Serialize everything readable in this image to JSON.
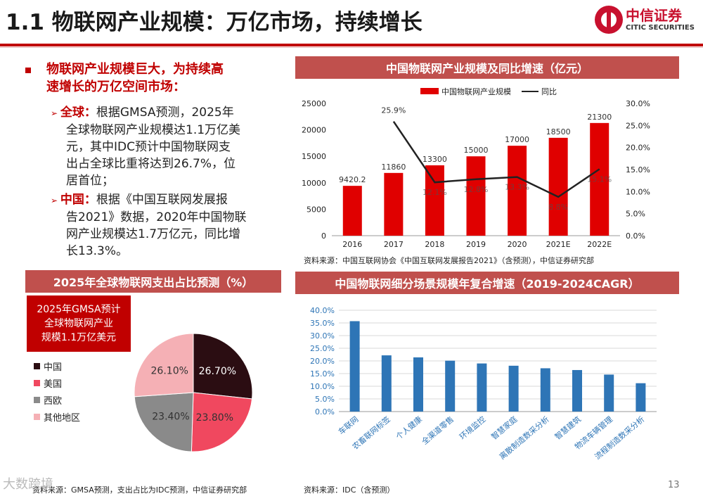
{
  "title": "1.1 物联网产业规模：万亿市场，持续增长",
  "logo": {
    "cn": "中信证券",
    "en": "CITIC SECURITIES"
  },
  "left": {
    "heading": "物联网产业规模巨大，为持续高速增长的万亿空间市场：",
    "heading_l1": "物联网产业规模巨大，为持续高",
    "heading_l2": "速增长的万亿空间市场：",
    "items": [
      {
        "label": "全球：",
        "lines": [
          "根据GMSA预测，2025年",
          "全球物联网产业规模达1.1万亿美",
          "元，其中IDC预计中国物联网支",
          "出占全球比重将达到26.7%，位",
          "居首位；"
        ]
      },
      {
        "label": "中国：",
        "lines": [
          "根据《中国互联网发展报",
          "告2021》数据，2020年中国物联",
          "网产业规模达1.7万亿元，同比增",
          "长13.3%。"
        ]
      }
    ]
  },
  "pie": {
    "header": "2025年全球物联网支出占比预测（%）",
    "note_lines": [
      "2025年GMSA预计",
      "全球物联网产业",
      "规模1.1万亿美元"
    ],
    "source": "资料来源：GMSA预测，支出占比为IDC预测，中信证券研究部"
  },
  "combo": {
    "header": "中国物联网产业规模及同比增速（亿元）",
    "source": "资料来源：中国互联网协会《中国互联网发展报告2021》（含预测），中信证券研究部"
  },
  "hbar": {
    "header": "中国物联网细分场景规模年复合增速（2019-2024CAGR）",
    "source": "资料来源：IDC（含预测）"
  },
  "watermark": "大数跨境",
  "page_number": "13",
  "colors": {
    "accent": "#c00000",
    "header_bar": "#c0504d",
    "bar_blue": "#2e75b6"
  },
  "chart_data": [
    {
      "type": "bar+line",
      "title": "中国物联网产业规模及同比增速（亿元）",
      "categories": [
        "2016",
        "2017",
        "2018",
        "2019",
        "2020",
        "2021E",
        "2022E"
      ],
      "series": [
        {
          "name": "中国物联网产业规模",
          "type": "bar",
          "axis": "left",
          "color": "#e00000",
          "values": [
            9420.2,
            11860,
            13300,
            15000,
            17000,
            18500,
            21300
          ],
          "labels": [
            "9420.2",
            "11860",
            "13300",
            "15000",
            "17000",
            "18500",
            "21300"
          ]
        },
        {
          "name": "同比",
          "type": "line",
          "axis": "right",
          "color": "#222222",
          "values": [
            null,
            25.9,
            12.1,
            12.8,
            13.3,
            8.8,
            15.1
          ],
          "labels": [
            "",
            "25.9%",
            "12.1%",
            "12.8%",
            "13.3%",
            "8.8%",
            "15.1%"
          ]
        }
      ],
      "yticks_left": [
        "0",
        "5000",
        "10000",
        "15000",
        "20000",
        "25000"
      ],
      "ylim_left": [
        0,
        25000
      ],
      "yticks_right": [
        "0.0%",
        "5.0%",
        "10.0%",
        "15.0%",
        "20.0%",
        "25.0%",
        "30.0%"
      ],
      "ylim_right": [
        0,
        30
      ],
      "legend": "top"
    },
    {
      "type": "pie",
      "title": "2025年全球物联网支出占比预测（%）",
      "slices": [
        {
          "name": "中国",
          "value": 26.7,
          "label": "26.70%",
          "color": "#2b0d12"
        },
        {
          "name": "美国",
          "value": 23.8,
          "label": "23.80%",
          "color": "#f0485f"
        },
        {
          "name": "西欧",
          "value": 23.4,
          "label": "23.40%",
          "color": "#8a8a8a"
        },
        {
          "name": "其他地区",
          "value": 26.1,
          "label": "26.10%",
          "color": "#f5b0b5"
        }
      ],
      "legend": "left"
    },
    {
      "type": "bar",
      "title": "中国物联网细分场景规模年复合增速（2019-2024CAGR）",
      "categories": [
        "车联网",
        "农畜联网标签",
        "个人健康",
        "全渠道零售",
        "环境监控",
        "智慧家庭",
        "离散制造数采分析",
        "智慧建筑",
        "物流车辆管理",
        "流程制造数采分析"
      ],
      "values": [
        35.7,
        22.2,
        21.4,
        20.1,
        19.0,
        18.1,
        17.1,
        16.4,
        14.6,
        11.2
      ],
      "yticks": [
        "0.0%",
        "5.0%",
        "10.0%",
        "15.0%",
        "20.0%",
        "25.0%",
        "30.0%",
        "35.0%",
        "40.0%"
      ],
      "ylim": [
        0,
        40
      ],
      "color": "#2e75b6"
    }
  ]
}
